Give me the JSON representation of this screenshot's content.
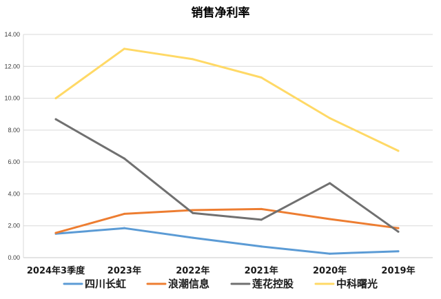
{
  "chart_data": {
    "type": "line",
    "title": "销售净利率",
    "categories": [
      "2024年3季度",
      "2023年",
      "2022年",
      "2021年",
      "2020年",
      "2019年"
    ],
    "ylim": [
      0,
      14
    ],
    "yticks": [
      "0.00",
      "2.00",
      "4.00",
      "6.00",
      "8.00",
      "10.00",
      "12.00",
      "14.00"
    ],
    "grid": true,
    "legend_position": "bottom",
    "series": [
      {
        "name": "四川长虹",
        "color": "#5b9bd5",
        "values": [
          1.5,
          1.85,
          1.25,
          0.7,
          0.25,
          0.4
        ]
      },
      {
        "name": "浪潮信息",
        "color": "#ed7d31",
        "values": [
          1.55,
          2.75,
          2.98,
          3.05,
          2.42,
          1.85
        ]
      },
      {
        "name": "莲花控股",
        "color": "#707070",
        "values": [
          8.68,
          6.22,
          2.8,
          2.38,
          4.67,
          1.63
        ]
      },
      {
        "name": "中科曙光",
        "color": "#ffd966",
        "values": [
          10.0,
          13.1,
          12.45,
          11.3,
          8.75,
          6.7
        ]
      }
    ]
  }
}
